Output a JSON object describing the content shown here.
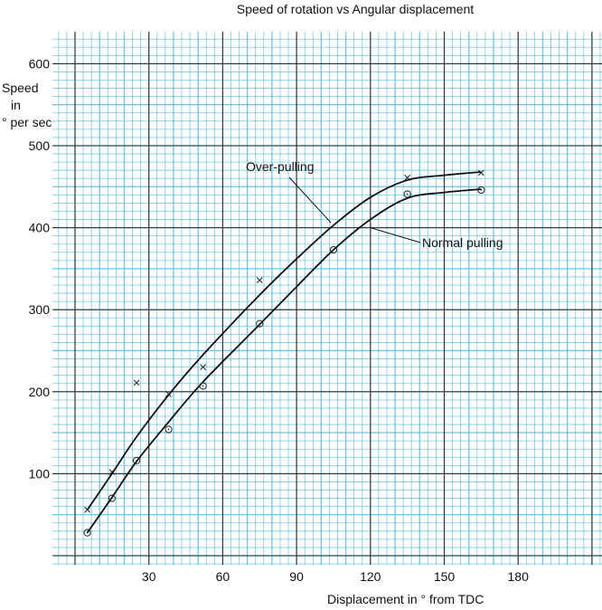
{
  "chart_data": {
    "type": "line",
    "title": "Speed of rotation vs Angular displacement",
    "xlabel": "Displacement in ° from TDC",
    "ylabel": [
      "Speed",
      "in",
      "° per sec"
    ],
    "x_ticks": [
      30,
      60,
      90,
      120,
      150,
      180
    ],
    "y_ticks": [
      100,
      200,
      300,
      400,
      500,
      600
    ],
    "xlim": [
      0,
      210
    ],
    "ylim": [
      0,
      650
    ],
    "grid": true,
    "legend": "annotations",
    "series": [
      {
        "name": "Over-pulling",
        "marker": "x",
        "points": [
          [
            5,
            56
          ],
          [
            15,
            102
          ],
          [
            25,
            211
          ],
          [
            38,
            197
          ],
          [
            52,
            230
          ],
          [
            75,
            336
          ],
          [
            135,
            461
          ],
          [
            165,
            467
          ]
        ],
        "curve": [
          [
            5,
            56
          ],
          [
            15,
            100
          ],
          [
            25,
            145
          ],
          [
            38,
            196
          ],
          [
            52,
            245
          ],
          [
            75,
            318
          ],
          [
            90,
            362
          ],
          [
            105,
            403
          ],
          [
            120,
            437
          ],
          [
            135,
            458
          ],
          [
            150,
            464
          ],
          [
            165,
            468
          ]
        ]
      },
      {
        "name": "Normal pulling",
        "marker": "o",
        "points": [
          [
            5,
            28
          ],
          [
            15,
            70
          ],
          [
            25,
            116
          ],
          [
            38,
            154
          ],
          [
            52,
            207
          ],
          [
            75,
            283
          ],
          [
            105,
            373
          ],
          [
            135,
            441
          ],
          [
            165,
            446
          ]
        ],
        "curve": [
          [
            5,
            28
          ],
          [
            15,
            71
          ],
          [
            25,
            115
          ],
          [
            38,
            163
          ],
          [
            52,
            212
          ],
          [
            75,
            282
          ],
          [
            90,
            328
          ],
          [
            105,
            373
          ],
          [
            120,
            410
          ],
          [
            135,
            436
          ],
          [
            150,
            443
          ],
          [
            165,
            447
          ]
        ]
      }
    ],
    "annotations": [
      {
        "text": "Over-pulling",
        "target": [
          104,
          406
        ]
      },
      {
        "text": "Normal pulling",
        "target": [
          120,
          400
        ]
      }
    ],
    "colors": {
      "minor_grid": "#5fc3e4",
      "major_grid": "#333333",
      "curve": "#111111"
    }
  }
}
